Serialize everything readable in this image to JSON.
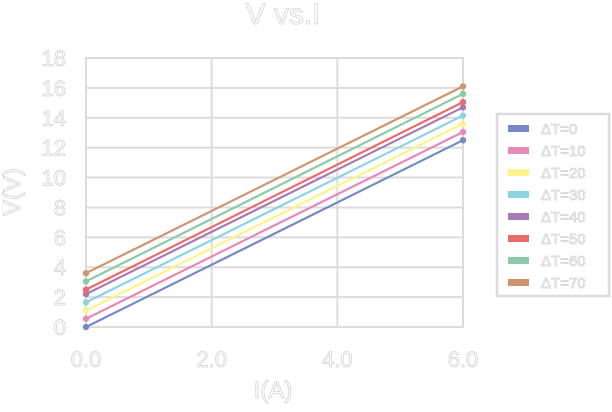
{
  "chart_data": {
    "type": "line",
    "title": "V vs.I",
    "xlabel": "I(A)",
    "ylabel": "V(V)",
    "xlim": [
      0,
      6
    ],
    "ylim": [
      0,
      18
    ],
    "grid": true,
    "legend_position": "right",
    "x_ticks": [
      "0.0",
      "2.0",
      "4.0",
      "6.0"
    ],
    "x_tick_values": [
      0,
      2,
      4,
      6
    ],
    "y_ticks": [
      "0",
      "2",
      "4",
      "6",
      "8",
      "10",
      "12",
      "14",
      "16",
      "18"
    ],
    "y_tick_values": [
      0,
      2,
      4,
      6,
      8,
      10,
      12,
      14,
      16,
      18
    ],
    "x": [
      0,
      6
    ],
    "series": [
      {
        "name": "ΔT=0",
        "color": "#7688c6",
        "values": [
          0.0,
          12.5
        ]
      },
      {
        "name": "ΔT=10",
        "color": "#e68ab8",
        "values": [
          0.55,
          13.05
        ]
      },
      {
        "name": "ΔT=20",
        "color": "#fff38a",
        "values": [
          1.1,
          13.6
        ]
      },
      {
        "name": "ΔT=30",
        "color": "#8dd3e0",
        "values": [
          1.65,
          14.15
        ]
      },
      {
        "name": "ΔT=40",
        "color": "#a97ab5",
        "values": [
          2.2,
          14.7
        ]
      },
      {
        "name": "ΔT=50",
        "color": "#eb6b6b",
        "values": [
          2.5,
          15.05
        ]
      },
      {
        "name": "ΔT=60",
        "color": "#8ccaa8",
        "values": [
          3.05,
          15.6
        ]
      },
      {
        "name": "ΔT=70",
        "color": "#d09570",
        "values": [
          3.6,
          16.1
        ]
      }
    ]
  }
}
